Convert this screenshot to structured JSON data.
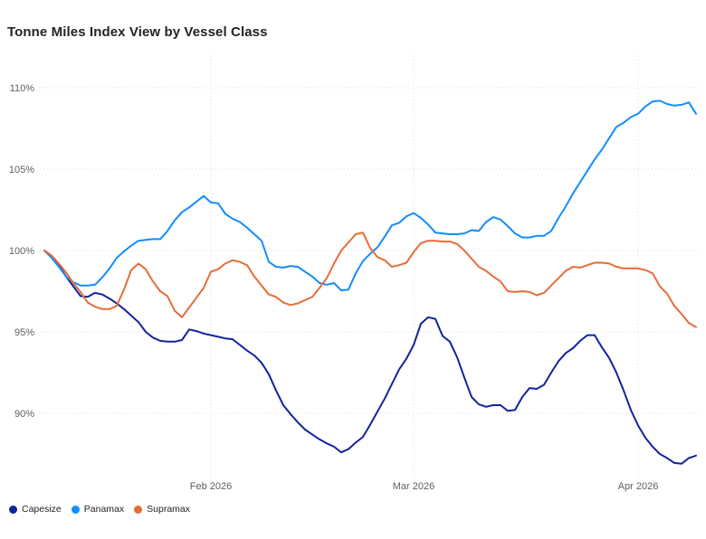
{
  "title": "Tonne Miles Index View by Vessel Class",
  "colors": {
    "capesize": "#12239E",
    "panamax": "#118DFF",
    "supramax": "#E66C37",
    "grid": "#DCDCDC",
    "axis_text": "#605E5C",
    "title_text": "#252423",
    "background": "#FFFFFF"
  },
  "legend": {
    "items": [
      {
        "label": "Capesize",
        "color_key": "capesize"
      },
      {
        "label": "Panamax",
        "color_key": "panamax"
      },
      {
        "label": "Supramax",
        "color_key": "supramax"
      }
    ]
  },
  "y_axis": {
    "tick_labels": [
      "110%",
      "105%",
      "100%",
      "95%",
      "90%"
    ],
    "tick_values": [
      110,
      105,
      100,
      95,
      90
    ]
  },
  "x_axis": {
    "tick_labels": [
      "Feb 2026",
      "Mar 2026",
      "Apr 2026"
    ],
    "tick_indices": [
      23,
      51,
      82
    ]
  },
  "chart_data": {
    "type": "line",
    "title": "Tonne Miles Index View by Vessel Class",
    "x_unit": "day",
    "n_points": 91,
    "ylim": [
      86,
      112
    ],
    "y_format": "percent",
    "grid": "dotted",
    "legend_position": "bottom-left",
    "x_tick_labels": [
      "Feb 2026",
      "Mar 2026",
      "Apr 2026"
    ],
    "x_tick_indices": [
      23,
      51,
      82
    ],
    "series": [
      {
        "name": "Capesize",
        "color_key": "capesize",
        "values": [
          100,
          99.6,
          99.1,
          98.4,
          97.8,
          97.2,
          97.15,
          97.4,
          97.3,
          97.05,
          96.75,
          96.4,
          96,
          95.6,
          95,
          94.65,
          94.45,
          94.4,
          94.4,
          94.5,
          95.15,
          95.05,
          94.9,
          94.8,
          94.7,
          94.6,
          94.55,
          94.2,
          93.85,
          93.55,
          93.1,
          92.4,
          91.4,
          90.5,
          89.95,
          89.45,
          89,
          88.7,
          88.4,
          88.15,
          87.95,
          87.6,
          87.8,
          88.2,
          88.55,
          89.3,
          90.1,
          90.9,
          91.8,
          92.7,
          93.35,
          94.2,
          95.5,
          95.9,
          95.8,
          94.75,
          94.4,
          93.45,
          92.2,
          91,
          90.55,
          90.4,
          90.5,
          90.5,
          90.15,
          90.2,
          91,
          91.55,
          91.5,
          91.75,
          92.5,
          93.2,
          93.7,
          94,
          94.45,
          94.8,
          94.8,
          94.05,
          93.4,
          92.5,
          91.4,
          90.2,
          89.25,
          88.5,
          87.95,
          87.5,
          87.25,
          86.95,
          86.9,
          87.25,
          87.4
        ]
      },
      {
        "name": "Panamax",
        "color_key": "panamax",
        "values": [
          100,
          99.55,
          99,
          98.4,
          98.05,
          97.85,
          97.85,
          97.9,
          98.35,
          98.9,
          99.55,
          99.95,
          100.3,
          100.6,
          100.65,
          100.7,
          100.7,
          101.2,
          101.85,
          102.35,
          102.65,
          103,
          103.35,
          102.95,
          102.9,
          102.25,
          101.95,
          101.75,
          101.4,
          101,
          100.6,
          99.3,
          99,
          98.95,
          99.05,
          99,
          98.7,
          98.4,
          98,
          97.9,
          98,
          97.55,
          97.6,
          98.6,
          99.35,
          99.8,
          100.2,
          100.85,
          101.55,
          101.7,
          102.1,
          102.3,
          102,
          101.6,
          101.1,
          101.05,
          101,
          101,
          101.05,
          101.25,
          101.2,
          101.75,
          102.05,
          101.9,
          101.5,
          101.05,
          100.8,
          100.8,
          100.9,
          100.9,
          101.2,
          102,
          102.7,
          103.5,
          104.2,
          104.9,
          105.6,
          106.2,
          106.9,
          107.6,
          107.85,
          108.2,
          108.4,
          108.85,
          109.15,
          109.2,
          109,
          108.9,
          108.95,
          109.1,
          108.4
        ]
      },
      {
        "name": "Supramax",
        "color_key": "supramax",
        "values": [
          100,
          99.7,
          99.2,
          98.65,
          98,
          97.45,
          96.8,
          96.55,
          96.4,
          96.4,
          96.6,
          97.6,
          98.8,
          99.2,
          98.85,
          98.1,
          97.5,
          97.2,
          96.3,
          95.9,
          96.5,
          97.1,
          97.7,
          98.7,
          98.85,
          99.2,
          99.4,
          99.3,
          99.1,
          98.4,
          97.85,
          97.3,
          97.15,
          96.8,
          96.65,
          96.75,
          96.95,
          97.15,
          97.7,
          98.3,
          99.2,
          100,
          100.5,
          101,
          101.1,
          100.15,
          99.6,
          99.4,
          99,
          99.1,
          99.25,
          99.9,
          100.45,
          100.6,
          100.6,
          100.55,
          100.55,
          100.4,
          100,
          99.5,
          99,
          98.75,
          98.4,
          98.1,
          97.5,
          97.45,
          97.5,
          97.45,
          97.25,
          97.4,
          97.85,
          98.3,
          98.75,
          99,
          98.95,
          99.1,
          99.25,
          99.25,
          99.2,
          99,
          98.9,
          98.9,
          98.9,
          98.8,
          98.6,
          97.8,
          97.35,
          96.6,
          96.1,
          95.55,
          95.3
        ]
      }
    ]
  }
}
